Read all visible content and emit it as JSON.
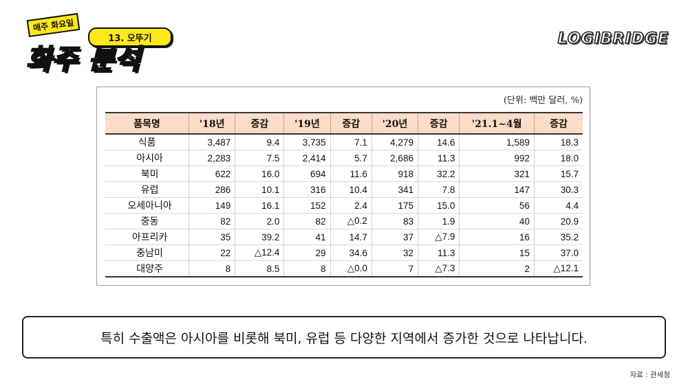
{
  "logo": {
    "tag": "매주 화요일",
    "episode": "13. 오뚜기",
    "title": "화주 분석"
  },
  "brand": "LOGIBRIDGE",
  "table": {
    "unit": "(단위: 백만 달러, %)",
    "headers": [
      "품목명",
      "'18년",
      "증감",
      "'19년",
      "증감",
      "'20년",
      "증감",
      "'21.1~4월",
      "증감"
    ],
    "rows": [
      {
        "name": "식품",
        "sub": false,
        "v": [
          "3,487",
          "9.4",
          "3,735",
          "7.1",
          "4,279",
          "14.6",
          "1,589",
          "18.3"
        ]
      },
      {
        "name": "아시아",
        "sub": true,
        "v": [
          "2,283",
          "7.5",
          "2,414",
          "5.7",
          "2,686",
          "11.3",
          "992",
          "18.0"
        ]
      },
      {
        "name": "북미",
        "sub": true,
        "v": [
          "622",
          "16.0",
          "694",
          "11.6",
          "918",
          "32.2",
          "321",
          "15.7"
        ]
      },
      {
        "name": "유럽",
        "sub": true,
        "v": [
          "286",
          "10.1",
          "316",
          "10.4",
          "341",
          "7.8",
          "147",
          "30.3"
        ]
      },
      {
        "name": "오세아니아",
        "sub": true,
        "v": [
          "149",
          "16.1",
          "152",
          "2.4",
          "175",
          "15.0",
          "56",
          "4.4"
        ]
      },
      {
        "name": "중동",
        "sub": true,
        "v": [
          "82",
          "2.0",
          "82",
          "△0.2",
          "83",
          "1.9",
          "40",
          "20.9"
        ]
      },
      {
        "name": "아프리카",
        "sub": true,
        "v": [
          "35",
          "39.2",
          "41",
          "14.7",
          "37",
          "△7.9",
          "16",
          "35.2"
        ]
      },
      {
        "name": "중남미",
        "sub": true,
        "v": [
          "22",
          "△12.4",
          "29",
          "34.6",
          "32",
          "11.3",
          "15",
          "37.0"
        ]
      },
      {
        "name": "대양주",
        "sub": true,
        "v": [
          "8",
          "8.5",
          "8",
          "△0.0",
          "7",
          "△7.3",
          "2",
          "△12.1"
        ]
      }
    ]
  },
  "subtitle": "특히 수출액은 아시아를 비롯해 북미, 유럽 등 다양한 지역에서 증가한 것으로 나타납니다.",
  "source": "자료 : 관세청"
}
